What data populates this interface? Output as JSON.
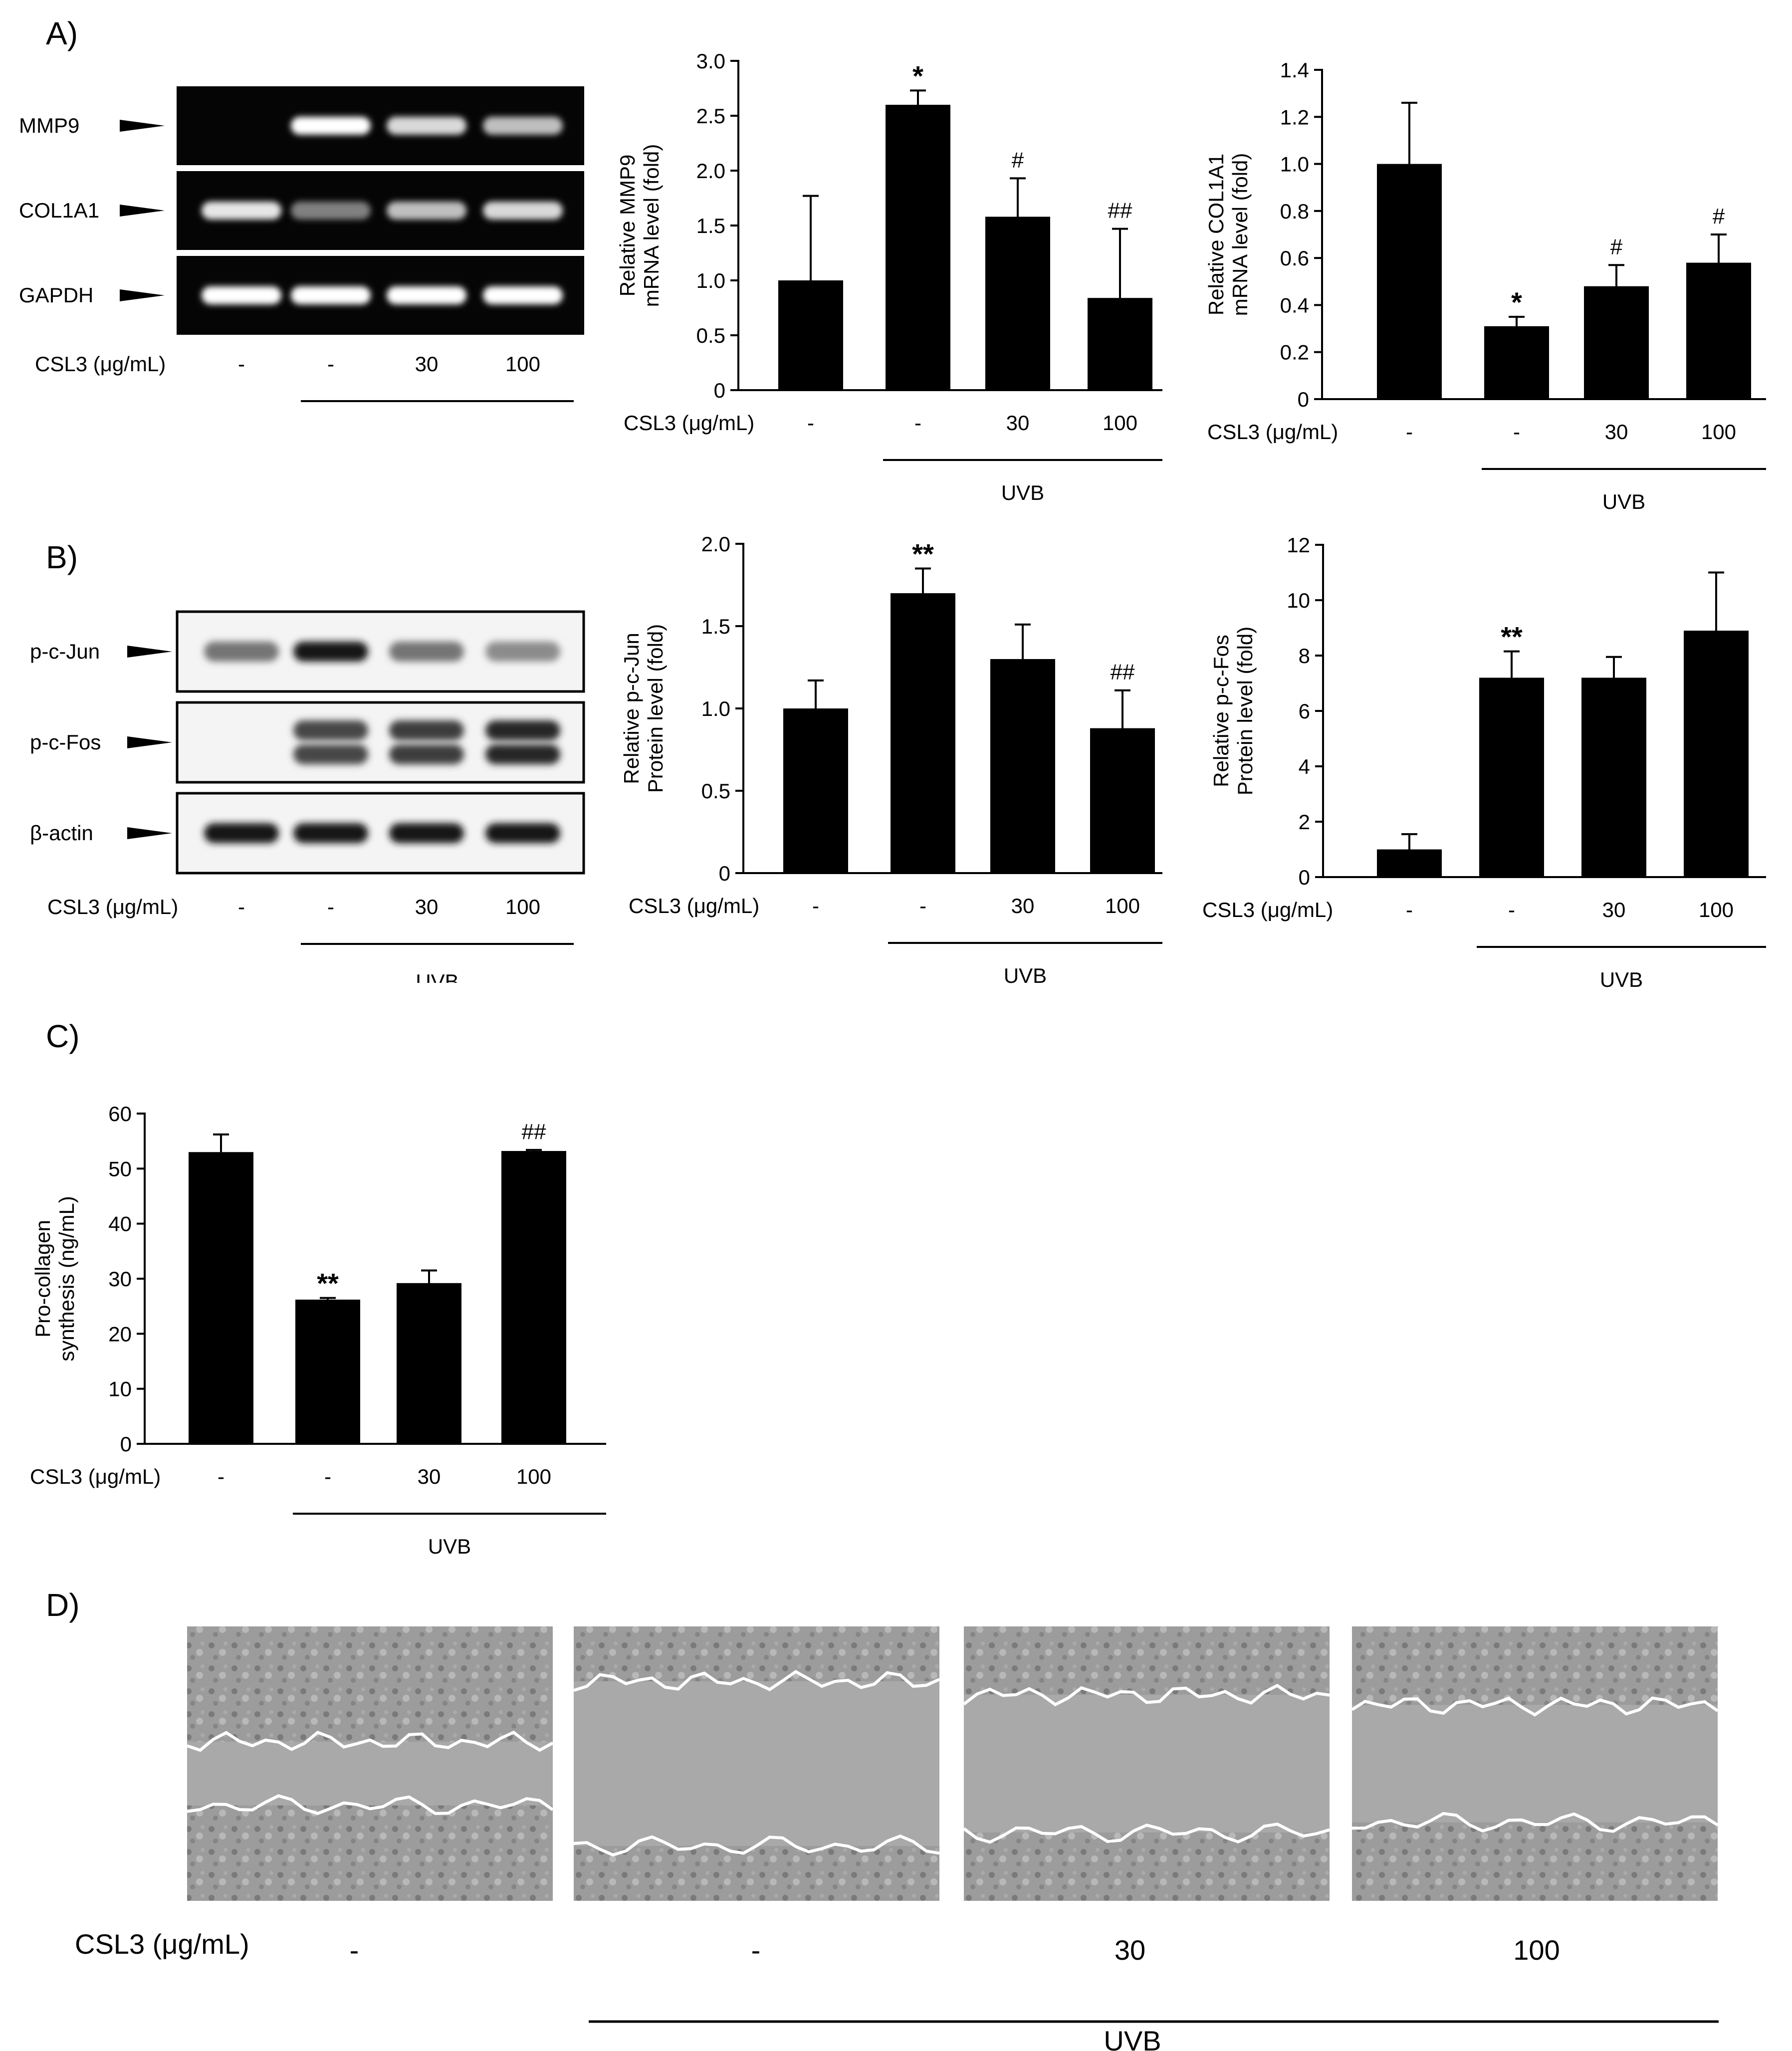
{
  "figure": {
    "panel_labels": [
      "A)",
      "B)",
      "C)",
      "D)"
    ],
    "dose_unit_label": "CSL3 (μg/mL)",
    "treatments": [
      "-",
      "-",
      "30",
      "100"
    ],
    "uvb_label": "UVB"
  },
  "blots": [
    {
      "panel": "A",
      "rows": [
        {
          "label": "MMP9",
          "intensity": [
            0.0,
            1.0,
            0.85,
            0.75
          ]
        },
        {
          "label": "COL1A1",
          "intensity": [
            0.9,
            0.5,
            0.75,
            0.85
          ]
        },
        {
          "label": "GAPDH",
          "intensity": [
            1.0,
            1.0,
            1.0,
            1.0
          ]
        }
      ]
    },
    {
      "panel": "B",
      "rows": [
        {
          "label": "p-c-Jun",
          "intensity": [
            0.6,
            1.0,
            0.6,
            0.5
          ]
        },
        {
          "label": "p-c-Fos",
          "intensity": [
            0.05,
            0.8,
            0.85,
            0.95
          ]
        },
        {
          "label": "β-actin",
          "intensity": [
            1.0,
            1.0,
            1.0,
            1.0
          ]
        }
      ]
    }
  ],
  "chart_data": [
    {
      "id": "mmp9",
      "type": "bar",
      "categories": [
        "-",
        "-",
        "30",
        "100"
      ],
      "values": [
        1.0,
        2.6,
        1.58,
        0.84
      ],
      "errors": [
        0.77,
        0.13,
        0.35,
        0.63
      ],
      "annotations": [
        "",
        "*",
        "#",
        "##"
      ],
      "ylabel": [
        "Relative MMP9",
        "mRNA level (fold)"
      ],
      "ylim": [
        0,
        3.0
      ],
      "yticks": [
        0,
        0.5,
        1.0,
        1.5,
        2.0,
        2.5,
        3.0
      ],
      "ytick_labels": [
        "0",
        "0.5",
        "1.0",
        "1.5",
        "2.0",
        "2.5",
        "3.0"
      ],
      "xlabel": "CSL3 (μg/mL)",
      "group_label": "UVB"
    },
    {
      "id": "col1a1",
      "type": "bar",
      "categories": [
        "-",
        "-",
        "30",
        "100"
      ],
      "values": [
        1.0,
        0.31,
        0.48,
        0.58
      ],
      "errors": [
        0.26,
        0.04,
        0.09,
        0.12
      ],
      "annotations": [
        "",
        "*",
        "#",
        "#"
      ],
      "ylabel": [
        "Relative COL1A1",
        "mRNA level (fold)"
      ],
      "ylim": [
        0,
        1.4
      ],
      "yticks": [
        0,
        0.2,
        0.4,
        0.6,
        0.8,
        1.0,
        1.2,
        1.4
      ],
      "ytick_labels": [
        "0",
        "0.2",
        "0.4",
        "0.6",
        "0.8",
        "1.0",
        "1.2",
        "1.4"
      ],
      "xlabel": "CSL3 (μg/mL)",
      "group_label": "UVB"
    },
    {
      "id": "pcjun",
      "type": "bar",
      "categories": [
        "-",
        "-",
        "30",
        "100"
      ],
      "values": [
        1.0,
        1.7,
        1.3,
        0.88
      ],
      "errors": [
        0.17,
        0.15,
        0.21,
        0.23
      ],
      "annotations": [
        "",
        "**",
        "",
        "##"
      ],
      "ylabel": [
        "Relative p-c-Jun",
        "Protein level (fold)"
      ],
      "ylim": [
        0,
        2.0
      ],
      "yticks": [
        0,
        0.5,
        1.0,
        1.5,
        2.0
      ],
      "ytick_labels": [
        "0",
        "0.5",
        "1.0",
        "1.5",
        "2.0"
      ],
      "xlabel": "CSL3 (μg/mL)",
      "group_label": "UVB"
    },
    {
      "id": "pcfos",
      "type": "bar",
      "categories": [
        "-",
        "-",
        "30",
        "100"
      ],
      "values": [
        1.0,
        7.2,
        7.2,
        8.9
      ],
      "errors": [
        0.55,
        0.95,
        0.75,
        2.1
      ],
      "annotations": [
        "",
        "**",
        "",
        ""
      ],
      "ylabel": [
        "Relative p-c-Fos",
        "Protein level (fold)"
      ],
      "ylim": [
        0,
        12
      ],
      "yticks": [
        0,
        2,
        4,
        6,
        8,
        10,
        12
      ],
      "ytick_labels": [
        "0",
        "2",
        "4",
        "6",
        "8",
        "10",
        "12"
      ],
      "xlabel": "CSL3 (μg/mL)",
      "group_label": "UVB"
    },
    {
      "id": "procollagen",
      "type": "bar",
      "categories": [
        "-",
        "-",
        "30",
        "100"
      ],
      "values": [
        53,
        26.2,
        29.2,
        53.2
      ],
      "errors": [
        3.2,
        0.3,
        2.3,
        0.2
      ],
      "annotations": [
        "",
        "**",
        "",
        "##"
      ],
      "ylabel": [
        "Pro-collagen",
        "synthesis (ng/mL)"
      ],
      "ylim": [
        0,
        60
      ],
      "yticks": [
        0,
        10,
        20,
        30,
        40,
        50,
        60
      ],
      "ytick_labels": [
        "0",
        "10",
        "20",
        "30",
        "40",
        "50",
        "60"
      ],
      "xlabel": "CSL3 (μg/mL)",
      "group_label": "UVB"
    }
  ],
  "wound_images": {
    "panel": "D",
    "relative_gap_width": [
      0.25,
      1.0,
      0.8,
      0.65
    ]
  }
}
